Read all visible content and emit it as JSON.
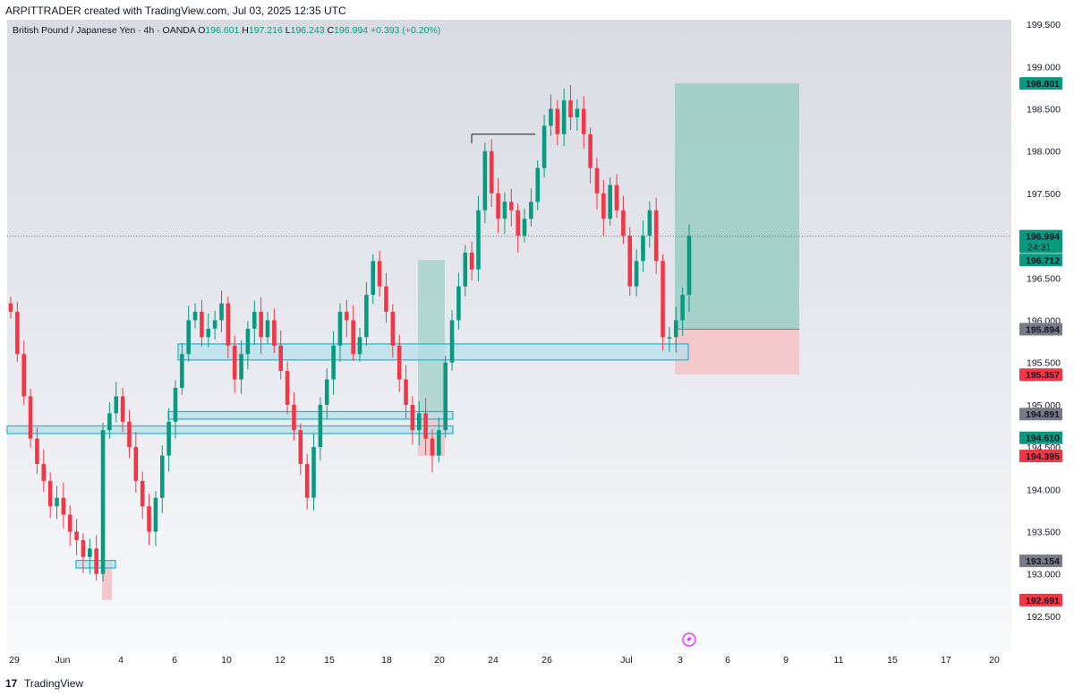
{
  "header": {
    "credit": "ARPITTRADER created with TradingView.com, Jul 03, 2025 12:35 UTC"
  },
  "legend": {
    "symbol": "British Pound / Japanese Yen · 4h · OANDA",
    "o_label": "O",
    "o_value": "196.601",
    "h_label": "H",
    "h_value": "197.216",
    "l_label": "L",
    "l_value": "196.243",
    "c_label": "C",
    "c_value": "196.994",
    "change": "+0.393 (+0.20%)"
  },
  "footer": {
    "brand": "TradingView",
    "logo_glyph": "17"
  },
  "colors": {
    "up": "#089981",
    "down": "#f23645",
    "zone_fill": "#b2e0ea",
    "zone_stroke": "#22b5cf",
    "target_fill": "#8fc9bd",
    "stop_fill": "#f4c2c7",
    "grey_badge": "#787b86"
  },
  "chart_data": {
    "type": "candlestick",
    "symbol": "GBPJPY",
    "timeframe": "4h",
    "ylim": [
      192.3,
      199.6
    ],
    "y_ticks": [
      "192.500",
      "193.000",
      "193.500",
      "194.000",
      "194.500",
      "195.000",
      "195.500",
      "196.000",
      "196.500",
      "197.000",
      "197.500",
      "198.000",
      "198.500",
      "199.000",
      "199.500"
    ],
    "x_ticks": [
      "29",
      "Jun",
      "4",
      "6",
      "10",
      "12",
      "15",
      "18",
      "20",
      "24",
      "26",
      "Jul",
      "3",
      "6",
      "9",
      "11",
      "15",
      "17",
      "20"
    ],
    "price_badges": [
      {
        "value": "198.801",
        "color": "#089981"
      },
      {
        "value": "196.994",
        "color": "#089981",
        "countdown": "24:31"
      },
      {
        "value": "196.712",
        "color": "#089981"
      },
      {
        "value": "195.894",
        "color": "#787b86"
      },
      {
        "value": "195.357",
        "color": "#f23645"
      },
      {
        "value": "194.891",
        "color": "#787b86"
      },
      {
        "value": "194.610",
        "color": "#089981"
      },
      {
        "value": "194.395",
        "color": "#f23645"
      },
      {
        "value": "193.154",
        "color": "#787b86"
      },
      {
        "value": "192.691",
        "color": "#f23645"
      }
    ],
    "current_price": 196.994,
    "long_position": {
      "entry": 195.894,
      "target": 198.801,
      "stop": 195.357
    },
    "past_position_1": {
      "entry": 194.891,
      "target": 196.712,
      "stop": 194.395
    },
    "past_position_2": {
      "entry": 193.154,
      "stop": 192.691
    },
    "zones": [
      {
        "low": 195.53,
        "high": 195.72
      },
      {
        "low": 194.83,
        "high": 194.92
      },
      {
        "low": 194.66,
        "high": 194.75
      },
      {
        "low": 193.07,
        "high": 193.16
      }
    ],
    "high_line": 198.2,
    "closes": [
      196.1,
      195.6,
      195.1,
      194.6,
      194.3,
      194.1,
      193.8,
      193.9,
      193.7,
      193.5,
      193.4,
      193.2,
      193.3,
      193.0,
      194.7,
      194.9,
      195.1,
      194.8,
      194.5,
      194.1,
      193.8,
      193.5,
      193.9,
      194.4,
      194.8,
      195.2,
      195.6,
      196.0,
      196.1,
      195.8,
      195.9,
      196.0,
      196.2,
      195.7,
      195.3,
      195.6,
      195.9,
      196.1,
      195.8,
      196.0,
      195.7,
      195.4,
      195.0,
      194.7,
      194.3,
      193.9,
      194.5,
      195.0,
      195.3,
      195.7,
      196.1,
      196.0,
      195.6,
      195.8,
      196.3,
      196.7,
      196.4,
      196.1,
      195.7,
      195.3,
      195.0,
      194.7,
      194.9,
      194.6,
      194.4,
      194.7,
      195.5,
      196.0,
      196.4,
      196.8,
      196.6,
      197.3,
      198.0,
      197.5,
      197.2,
      197.4,
      197.3,
      197.0,
      197.2,
      197.4,
      197.8,
      198.3,
      198.5,
      198.2,
      198.6,
      198.4,
      198.5,
      198.2,
      197.8,
      197.5,
      197.2,
      197.6,
      197.3,
      197.0,
      196.4,
      196.7,
      197.0,
      197.3,
      196.7,
      195.8,
      195.8,
      196.0,
      196.3,
      197.0
    ]
  }
}
